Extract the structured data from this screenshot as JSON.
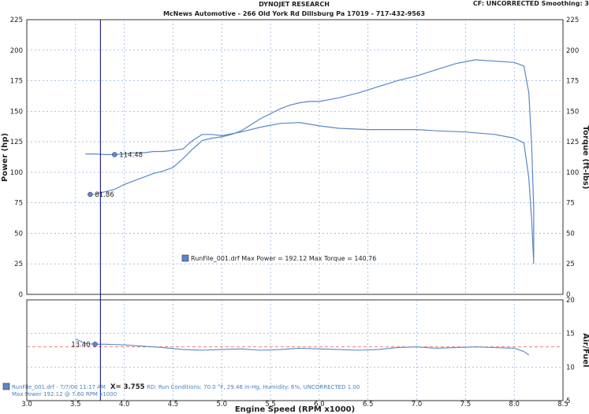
{
  "header": {
    "title": "DYNOJET RESEARCH",
    "subtitle": "McNews Automotive - 266 Old York Rd Dillsburg Pa 17019 - 717-432-9563",
    "corner": "CF: UNCORRECTED  Smoothing: 3"
  },
  "legend": {
    "label": "RunFile_001.drf Max Power = 192.12    Max Torque = 140.76"
  },
  "footer": {
    "run_info": "RunFile_001.drf - 7/7/00 11:17 AM",
    "cursor_readout": "X= 3.755",
    "conditions": "RD: Run Conditions: 70.0 °F, 29.46 in-Hg, Humidity: 6%, UNCORRECTED 1.00",
    "line2": "Max Power 192.12 @ 7.60 RPM x1000"
  },
  "colors": {
    "curve": "#5b87c5",
    "grid": "#7a9fd0",
    "afr_ref": "#e05555",
    "cursor": "#000080"
  },
  "chart_data": [
    {
      "type": "line",
      "xlabel": "Engine Speed (RPM x1000)",
      "ylabel": "Power (hp)",
      "ylabel_right": "Torque (ft-lbs)",
      "xlim": [
        3.0,
        8.5
      ],
      "ylim": [
        0,
        225
      ],
      "ylim_right": [
        0,
        225
      ],
      "x_ticks": [
        3.0,
        3.5,
        4.0,
        4.5,
        5.0,
        5.5,
        6.0,
        6.5,
        7.0,
        7.5,
        8.0,
        8.5
      ],
      "x_tick_labels": [
        "3.0",
        "3.5",
        "4.0",
        "4.5",
        "5.0",
        "5.5",
        "6.0",
        "6.5",
        "7.0",
        "7.5",
        "8.0",
        "8.5"
      ],
      "y_ticks": [
        0,
        25,
        50,
        75,
        100,
        125,
        150,
        175,
        200,
        225
      ],
      "y_tick_labels": [
        "0",
        "25",
        "50",
        "75",
        "100",
        "125",
        "150",
        "175",
        "200",
        "225"
      ],
      "grid": true,
      "cursor_x": 3.755,
      "series": [
        {
          "name": "Power",
          "x": [
            3.65,
            3.7,
            3.8,
            3.9,
            4.0,
            4.1,
            4.2,
            4.3,
            4.4,
            4.5,
            4.6,
            4.7,
            4.8,
            4.9,
            5.0,
            5.1,
            5.2,
            5.3,
            5.4,
            5.5,
            5.6,
            5.7,
            5.8,
            5.9,
            6.0,
            6.2,
            6.4,
            6.6,
            6.8,
            7.0,
            7.2,
            7.4,
            7.6,
            7.8,
            8.0,
            8.1,
            8.15,
            8.18,
            8.2,
            8.2
          ],
          "y": [
            81.86,
            82,
            84,
            86,
            90,
            93,
            96,
            99,
            101,
            104,
            111,
            119,
            126,
            128,
            129,
            131,
            134,
            139,
            144,
            148,
            152,
            155,
            157,
            158,
            158,
            161,
            165,
            170,
            175,
            179,
            184,
            189,
            192.12,
            191,
            190,
            187,
            165,
            120,
            70,
            30
          ]
        },
        {
          "name": "Torque",
          "x": [
            3.6,
            3.7,
            3.8,
            3.9,
            4.0,
            4.1,
            4.2,
            4.3,
            4.4,
            4.5,
            4.6,
            4.7,
            4.8,
            4.9,
            5.0,
            5.2,
            5.4,
            5.6,
            5.8,
            6.0,
            6.2,
            6.5,
            6.8,
            7.0,
            7.2,
            7.5,
            7.8,
            8.0,
            8.1,
            8.15,
            8.18,
            8.2
          ],
          "y": [
            115,
            115,
            114.5,
            114.48,
            115,
            116,
            116,
            117,
            117,
            118,
            119,
            126,
            131,
            131,
            130,
            133,
            137,
            140,
            140.76,
            138,
            136,
            135,
            135,
            135,
            134,
            133,
            131,
            128,
            124,
            95,
            60,
            25
          ]
        }
      ],
      "annotations": [
        {
          "x": 3.9,
          "y": 114.48,
          "label": "114.48"
        },
        {
          "x": 3.65,
          "y": 81.86,
          "label": "81.86"
        }
      ]
    },
    {
      "type": "line",
      "ylabel_right": "Air/Fuel",
      "xlim": [
        3.0,
        8.5
      ],
      "ylim": [
        5,
        20
      ],
      "y_ticks": [
        5,
        10,
        15,
        20
      ],
      "y_tick_labels": [
        "5",
        "10",
        "15",
        "20"
      ],
      "reference_line": 13.0,
      "series": [
        {
          "name": "Air/Fuel",
          "x": [
            3.5,
            3.6,
            3.7,
            3.8,
            4.0,
            4.2,
            4.4,
            4.6,
            4.8,
            5.0,
            5.2,
            5.4,
            5.6,
            5.8,
            6.0,
            6.2,
            6.4,
            6.6,
            6.8,
            7.0,
            7.2,
            7.4,
            7.6,
            7.8,
            8.0,
            8.1,
            8.15
          ],
          "y": [
            14.2,
            13.5,
            13.4,
            13.4,
            13.3,
            13.1,
            12.9,
            12.6,
            12.5,
            12.6,
            12.7,
            12.5,
            12.6,
            12.8,
            12.7,
            12.6,
            12.5,
            12.6,
            12.9,
            13.0,
            12.8,
            12.9,
            13.0,
            12.9,
            12.8,
            12.3,
            11.8
          ]
        }
      ],
      "annotations": [
        {
          "x": 3.7,
          "y": 13.4,
          "label": "13.40"
        }
      ]
    }
  ]
}
